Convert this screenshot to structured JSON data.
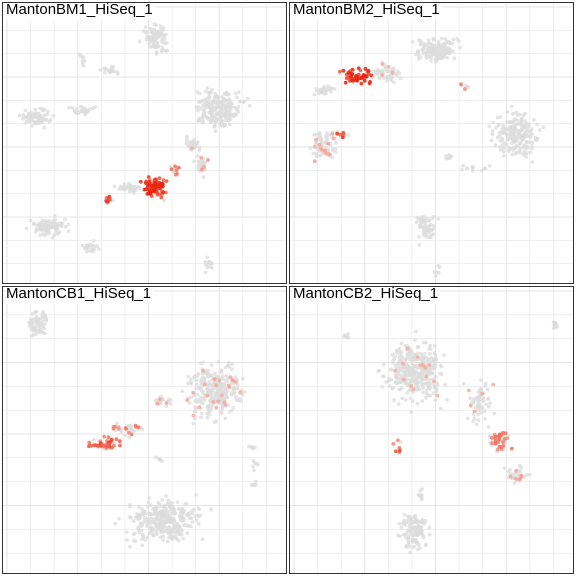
{
  "colors": {
    "background_cell": "#dcdcdc",
    "low_expression": "#f4b6a8",
    "high_expression": "#e8230d",
    "grid": "#e6e6e6",
    "border": "#333333"
  },
  "chart_data": [
    {
      "type": "scatter",
      "title": "MantonBM1_HiSeq_1",
      "grid": true,
      "legend": "none",
      "clusters": [
        {
          "cx": 0.16,
          "cy": 0.2,
          "sx": 0.06,
          "sy": 0.03,
          "n": 90,
          "expr": 0
        },
        {
          "cx": 0.31,
          "cy": 0.13,
          "sx": 0.03,
          "sy": 0.02,
          "n": 25,
          "expr": 0
        },
        {
          "cx": 0.54,
          "cy": 0.88,
          "sx": 0.04,
          "sy": 0.05,
          "n": 90,
          "expr": 0
        },
        {
          "cx": 0.38,
          "cy": 0.76,
          "sx": 0.03,
          "sy": 0.02,
          "n": 20,
          "expr": 0
        },
        {
          "cx": 0.12,
          "cy": 0.59,
          "sx": 0.05,
          "sy": 0.03,
          "n": 70,
          "expr": 0
        },
        {
          "cx": 0.28,
          "cy": 0.62,
          "sx": 0.04,
          "sy": 0.015,
          "n": 25,
          "expr": 0
        },
        {
          "cx": 0.76,
          "cy": 0.62,
          "sx": 0.08,
          "sy": 0.06,
          "n": 230,
          "expr": 0
        },
        {
          "cx": 0.67,
          "cy": 0.49,
          "sx": 0.025,
          "sy": 0.03,
          "n": 30,
          "expr": 0.05
        },
        {
          "cx": 0.71,
          "cy": 0.42,
          "sx": 0.03,
          "sy": 0.03,
          "n": 30,
          "expr": 0.2
        },
        {
          "cx": 0.45,
          "cy": 0.34,
          "sx": 0.05,
          "sy": 0.015,
          "n": 35,
          "expr": 0
        },
        {
          "cx": 0.54,
          "cy": 0.34,
          "sx": 0.04,
          "sy": 0.035,
          "n": 80,
          "expr": 0.85
        },
        {
          "cx": 0.37,
          "cy": 0.3,
          "sx": 0.015,
          "sy": 0.015,
          "n": 12,
          "expr": 0.7
        },
        {
          "cx": 0.73,
          "cy": 0.07,
          "sx": 0.015,
          "sy": 0.025,
          "n": 15,
          "expr": 0
        },
        {
          "cx": 0.28,
          "cy": 0.8,
          "sx": 0.01,
          "sy": 0.04,
          "n": 8,
          "expr": 0
        },
        {
          "cx": 0.61,
          "cy": 0.4,
          "sx": 0.02,
          "sy": 0.02,
          "n": 15,
          "expr": 0.6
        }
      ]
    },
    {
      "type": "scatter",
      "title": "MantonBM2_HiSeq_1",
      "grid": true,
      "legend": "none",
      "clusters": [
        {
          "cx": 0.52,
          "cy": 0.83,
          "sx": 0.07,
          "sy": 0.04,
          "n": 150,
          "expr": 0
        },
        {
          "cx": 0.34,
          "cy": 0.75,
          "sx": 0.05,
          "sy": 0.03,
          "n": 60,
          "expr": 0.05
        },
        {
          "cx": 0.23,
          "cy": 0.74,
          "sx": 0.05,
          "sy": 0.03,
          "n": 50,
          "expr": 0.9
        },
        {
          "cx": 0.12,
          "cy": 0.69,
          "sx": 0.03,
          "sy": 0.02,
          "n": 25,
          "expr": 0
        },
        {
          "cx": 0.8,
          "cy": 0.53,
          "sx": 0.07,
          "sy": 0.07,
          "n": 200,
          "expr": 0
        },
        {
          "cx": 0.12,
          "cy": 0.49,
          "sx": 0.04,
          "sy": 0.05,
          "n": 90,
          "expr": 0.1
        },
        {
          "cx": 0.19,
          "cy": 0.53,
          "sx": 0.015,
          "sy": 0.015,
          "n": 10,
          "expr": 0.7
        },
        {
          "cx": 0.48,
          "cy": 0.2,
          "sx": 0.035,
          "sy": 0.05,
          "n": 60,
          "expr": 0
        },
        {
          "cx": 0.52,
          "cy": 0.05,
          "sx": 0.01,
          "sy": 0.03,
          "n": 6,
          "expr": 0
        },
        {
          "cx": 0.56,
          "cy": 0.45,
          "sx": 0.02,
          "sy": 0.01,
          "n": 8,
          "expr": 0
        },
        {
          "cx": 0.65,
          "cy": 0.41,
          "sx": 0.04,
          "sy": 0.01,
          "n": 12,
          "expr": 0
        },
        {
          "cx": 0.62,
          "cy": 0.7,
          "sx": 0.015,
          "sy": 0.015,
          "n": 6,
          "expr": 0.4
        }
      ]
    },
    {
      "type": "scatter",
      "title": "MantonCB1_HiSeq_1",
      "grid": true,
      "legend": "none",
      "clusters": [
        {
          "cx": 0.12,
          "cy": 0.87,
          "sx": 0.04,
          "sy": 0.04,
          "n": 70,
          "expr": 0
        },
        {
          "cx": 0.75,
          "cy": 0.64,
          "sx": 0.09,
          "sy": 0.09,
          "n": 280,
          "expr": 0.08
        },
        {
          "cx": 0.56,
          "cy": 0.6,
          "sx": 0.03,
          "sy": 0.02,
          "n": 20,
          "expr": 0.15
        },
        {
          "cx": 0.43,
          "cy": 0.5,
          "sx": 0.06,
          "sy": 0.02,
          "n": 35,
          "expr": 0.35
        },
        {
          "cx": 0.35,
          "cy": 0.45,
          "sx": 0.05,
          "sy": 0.02,
          "n": 40,
          "expr": 0.6
        },
        {
          "cx": 0.57,
          "cy": 0.18,
          "sx": 0.12,
          "sy": 0.07,
          "n": 300,
          "expr": 0
        },
        {
          "cx": 0.88,
          "cy": 0.44,
          "sx": 0.015,
          "sy": 0.01,
          "n": 6,
          "expr": 0
        },
        {
          "cx": 0.89,
          "cy": 0.31,
          "sx": 0.015,
          "sy": 0.01,
          "n": 6,
          "expr": 0
        },
        {
          "cx": 0.89,
          "cy": 0.38,
          "sx": 0.01,
          "sy": 0.02,
          "n": 6,
          "expr": 0
        },
        {
          "cx": 0.56,
          "cy": 0.4,
          "sx": 0.02,
          "sy": 0.01,
          "n": 5,
          "expr": 0
        }
      ]
    },
    {
      "type": "scatter",
      "title": "MantonCB2_HiSeq_1",
      "grid": true,
      "legend": "none",
      "clusters": [
        {
          "cx": 0.44,
          "cy": 0.7,
          "sx": 0.09,
          "sy": 0.09,
          "n": 350,
          "expr": 0.02
        },
        {
          "cx": 0.67,
          "cy": 0.6,
          "sx": 0.04,
          "sy": 0.07,
          "n": 60,
          "expr": 0.1
        },
        {
          "cx": 0.74,
          "cy": 0.46,
          "sx": 0.035,
          "sy": 0.035,
          "n": 50,
          "expr": 0.35
        },
        {
          "cx": 0.8,
          "cy": 0.34,
          "sx": 0.035,
          "sy": 0.03,
          "n": 45,
          "expr": 0.15
        },
        {
          "cx": 0.44,
          "cy": 0.14,
          "sx": 0.045,
          "sy": 0.06,
          "n": 120,
          "expr": 0
        },
        {
          "cx": 0.46,
          "cy": 0.27,
          "sx": 0.01,
          "sy": 0.03,
          "n": 10,
          "expr": 0
        },
        {
          "cx": 0.94,
          "cy": 0.87,
          "sx": 0.015,
          "sy": 0.015,
          "n": 12,
          "expr": 0
        },
        {
          "cx": 0.2,
          "cy": 0.83,
          "sx": 0.015,
          "sy": 0.01,
          "n": 6,
          "expr": 0
        },
        {
          "cx": 0.38,
          "cy": 0.44,
          "sx": 0.02,
          "sy": 0.03,
          "n": 8,
          "expr": 0.5
        }
      ]
    }
  ]
}
